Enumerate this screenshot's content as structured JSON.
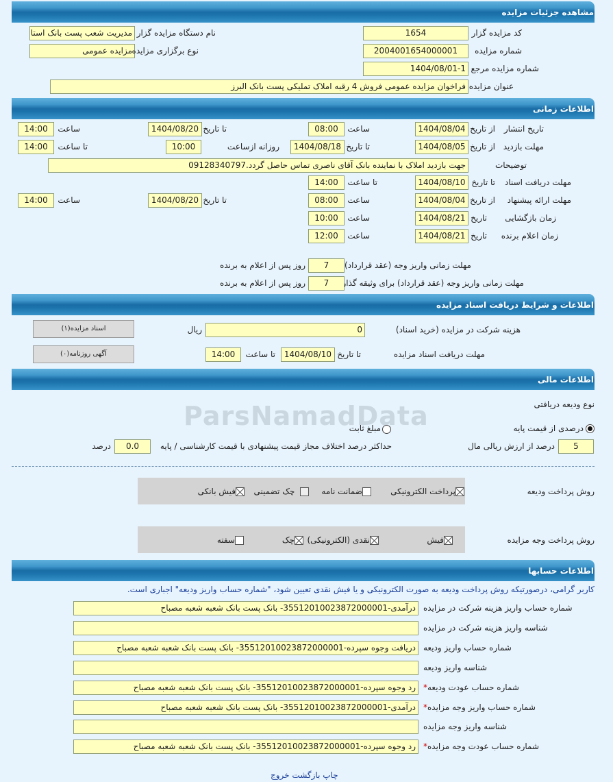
{
  "watermark": "ParsNamadData",
  "s1": {
    "title": "مشاهده جزئیات مزایده",
    "code_label": "کد مزایده گزار",
    "code": "1654",
    "org_label": "نام دستگاه مزایده گزار",
    "org": "مدیریت شعب پست بانک استان البرز",
    "number_label": "شماره مزایده",
    "number": "2004001654000001",
    "type_label": "نوع برگزاری مزایده",
    "type": "مزایده عمومی",
    "ref_label": "شماره مزایده مرجع",
    "ref": "1404/08/01-1",
    "subject_label": "عنوان مزایده",
    "subject": "فراخوان مزایده عمومی فروش 4 رقبه املاک تملیکی پست بانک البرز"
  },
  "s2": {
    "title": "اطلاعات زمانی",
    "from_date": "از تاریخ",
    "to_date": "تا تاریخ",
    "date": "تاریخ",
    "hour": "ساعت",
    "to_hour": "تا ساعت",
    "daily_from": "روزانه ازساعت",
    "publish": {
      "label": "تاریخ انتشار",
      "from": "1404/08/04",
      "from_time": "08:00",
      "to": "1404/08/20",
      "to_time": "14:00"
    },
    "visit": {
      "label": "مهلت بازدید",
      "from": "1404/08/05",
      "to": "1404/08/18",
      "daily_from": "10:00",
      "to_time": "14:00"
    },
    "notes": {
      "label": "توضیحات",
      "value": "جهت بازدید املاک با نماینده بانک آقای ناصری تماس حاصل گردد.09128340797"
    },
    "docs": {
      "label": "مهلت دریافت اسناد",
      "to": "1404/08/10",
      "to_time": "14:00"
    },
    "offer": {
      "label": "مهلت ارائه پیشنهاد",
      "from": "1404/08/04",
      "from_time": "08:00",
      "to": "1404/08/20",
      "to_time": "14:00"
    },
    "opening": {
      "label": "زمان بازگشایی",
      "date": "1404/08/21",
      "time": "10:00"
    },
    "winner": {
      "label": "زمان اعلام برنده",
      "date": "1404/08/21",
      "time": "12:00"
    },
    "pay1": {
      "label": "مهلت زمانی واریز وجه (عقد قرارداد)",
      "value": "7",
      "suffix": "روز پس از اعلام به برنده"
    },
    "pay2": {
      "label": "مهلت زمانی واریز وجه (عقد قرارداد) برای وثیقه گذار",
      "value": "7",
      "suffix": "روز پس از اعلام به برنده"
    }
  },
  "s3": {
    "title": "اطلاعات و شرایط دریافت اسناد مزایده",
    "fee_label": "هزینه شرکت در مزایده (خرید اسناد)",
    "fee": "0",
    "currency": "ریال",
    "docs_label": "مهلت دریافت اسناد مزایده",
    "to_date_label": "تا تاریخ",
    "to_date": "1404/08/10",
    "to_time_label": "تا ساعت",
    "to_time": "14:00",
    "btn_docs": "اسناد مزایده(۱)",
    "btn_ads": "آگهی روزنامه(۰)"
  },
  "s4": {
    "title": "اطلاعات مالی",
    "deposit_type_label": "نوع ودیعه دریافتی",
    "radio_percent": "درصدی از قیمت پایه",
    "radio_fixed": "مبلغ ثابت",
    "selected": "درصدی از قیمت پایه",
    "percent": "5",
    "percent_suffix": "درصد از ارزش ریالی مال",
    "max_diff_label": "حداکثر درصد اختلاف مجاز قیمت پیشنهادی با قیمت کارشناسی / پایه",
    "max_diff": "0.0",
    "max_diff_suffix": "درصد",
    "deposit_method_label": "روش پرداخت ودیعه",
    "deposit_methods": [
      {
        "label": "پرداخت الکترونیکی",
        "checked": true
      },
      {
        "label": "ضمانت نامه",
        "checked": false
      },
      {
        "label": "چک تضمینی",
        "checked": false
      },
      {
        "label": "فیش بانکی",
        "checked": true
      }
    ],
    "payment_method_label": "روش پرداخت وجه مزایده",
    "payment_methods": [
      {
        "label": "فیش",
        "checked": true
      },
      {
        "label": "نقدی (الکترونیکی)",
        "checked": true
      },
      {
        "label": "چک",
        "checked": true
      },
      {
        "label": "سفته",
        "checked": false
      }
    ]
  },
  "s5": {
    "title": "اطلاعات حسابها",
    "notice": "کاربر گرامی، درصورتیکه روش پرداخت ودیعه به صورت الکترونیکی و یا فیش نقدی تعیین شود، \"شماره حساب واریز ودیعه\" اجباری است.",
    "rows": [
      {
        "label": "شماره حساب واریز هزینه شرکت در مزایده",
        "value": "درآمدی-3551201002387200000​1- بانک پست بانک شعبه شعبه مصباح",
        "required": false
      },
      {
        "label": "شناسه واریز هزینه شرکت در مزایده",
        "value": "",
        "required": false
      },
      {
        "label": "شماره حساب واریز ودیعه",
        "value": "دریافت وجوه سپرده-3551201002387200000​1- بانک پست بانک شعبه شعبه مصباح",
        "required": false
      },
      {
        "label": "شناسه واریز ودیعه",
        "value": "",
        "required": false
      },
      {
        "label": "شماره حساب عودت ودیعه",
        "value": "رد وجوه سپرده-3551201002387200000​1- بانک پست بانک شعبه شعبه مصباح",
        "required": true
      },
      {
        "label": "شماره حساب واریز وجه مزایده",
        "value": "درآمدی-3551201002387200000​1- بانک پست بانک شعبه شعبه مصباح",
        "required": true
      },
      {
        "label": "شناسه واریز وجه مزایده",
        "value": "",
        "required": false
      },
      {
        "label": "شماره حساب عودت وجه مزایده",
        "value": "رد وجوه سپرده-3551201002387200000​1- بانک پست بانک شعبه شعبه مصباح",
        "required": true
      }
    ],
    "required_mark": "*"
  },
  "footer": {
    "print": "چاپ",
    "back": "بازگشت",
    "exit": "خروج"
  }
}
